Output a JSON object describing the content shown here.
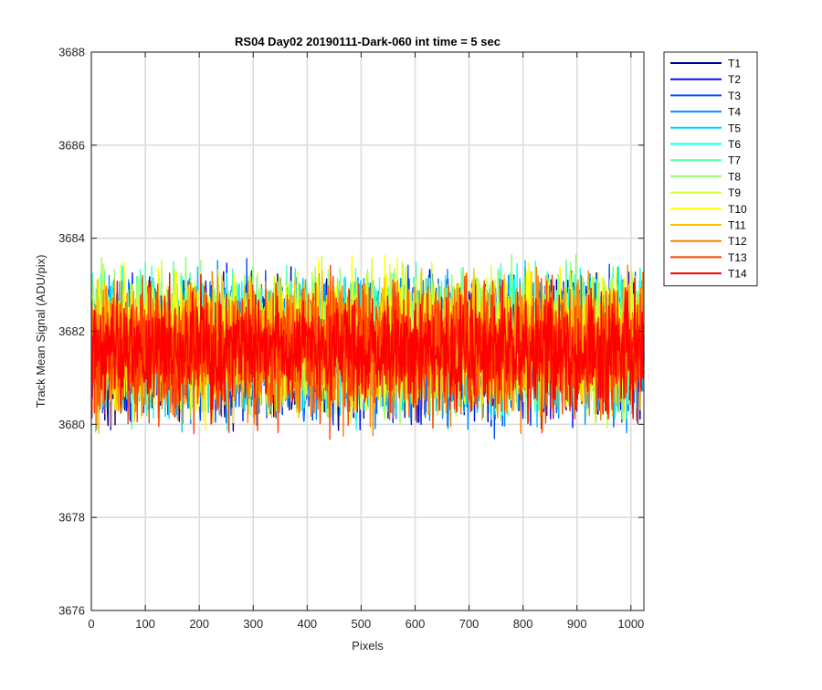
{
  "chart_data": {
    "type": "line",
    "title": "RS04 Day02 20190111-Dark-060 int time = 5 sec",
    "xlabel": "Pixels",
    "ylabel": "Track Mean Signal (ADU/pix)",
    "xlim": [
      0,
      1024
    ],
    "ylim": [
      3676,
      3688
    ],
    "xticks": [
      0,
      100,
      200,
      300,
      400,
      500,
      600,
      700,
      800,
      900,
      1000
    ],
    "yticks": [
      3676,
      3678,
      3680,
      3682,
      3684,
      3686,
      3688
    ],
    "grid": true,
    "legend_position": "outside-top-right",
    "x": {
      "start": 1,
      "end": 1024,
      "step": 1
    },
    "series": [
      {
        "name": "T1",
        "color": "#00008f",
        "mean": 3681.6,
        "noise_amplitude": 1.2
      },
      {
        "name": "T2",
        "color": "#0010ff",
        "mean": 3681.6,
        "noise_amplitude": 1.2
      },
      {
        "name": "T3",
        "color": "#0050ff",
        "mean": 3681.6,
        "noise_amplitude": 1.2
      },
      {
        "name": "T4",
        "color": "#0090ff",
        "mean": 3681.7,
        "noise_amplitude": 1.2
      },
      {
        "name": "T5",
        "color": "#00cfff",
        "mean": 3681.7,
        "noise_amplitude": 1.2
      },
      {
        "name": "T6",
        "color": "#10ffef",
        "mean": 3681.7,
        "noise_amplitude": 1.2
      },
      {
        "name": "T7",
        "color": "#50ffaf",
        "mean": 3681.8,
        "noise_amplitude": 1.2
      },
      {
        "name": "T8",
        "color": "#8fff70",
        "mean": 3681.8,
        "noise_amplitude": 1.2
      },
      {
        "name": "T9",
        "color": "#cfff30",
        "mean": 3681.8,
        "noise_amplitude": 1.2
      },
      {
        "name": "T10",
        "color": "#ffff00",
        "mean": 3681.8,
        "noise_amplitude": 1.2
      },
      {
        "name": "T11",
        "color": "#ffbf00",
        "mean": 3681.7,
        "noise_amplitude": 1.2
      },
      {
        "name": "T12",
        "color": "#ff7f00",
        "mean": 3681.6,
        "noise_amplitude": 1.2
      },
      {
        "name": "T13",
        "color": "#ff4000",
        "mean": 3681.6,
        "noise_amplitude": 1.2
      },
      {
        "name": "T14",
        "color": "#ff0000",
        "mean": 3681.6,
        "noise_amplitude": 1.0
      }
    ]
  }
}
